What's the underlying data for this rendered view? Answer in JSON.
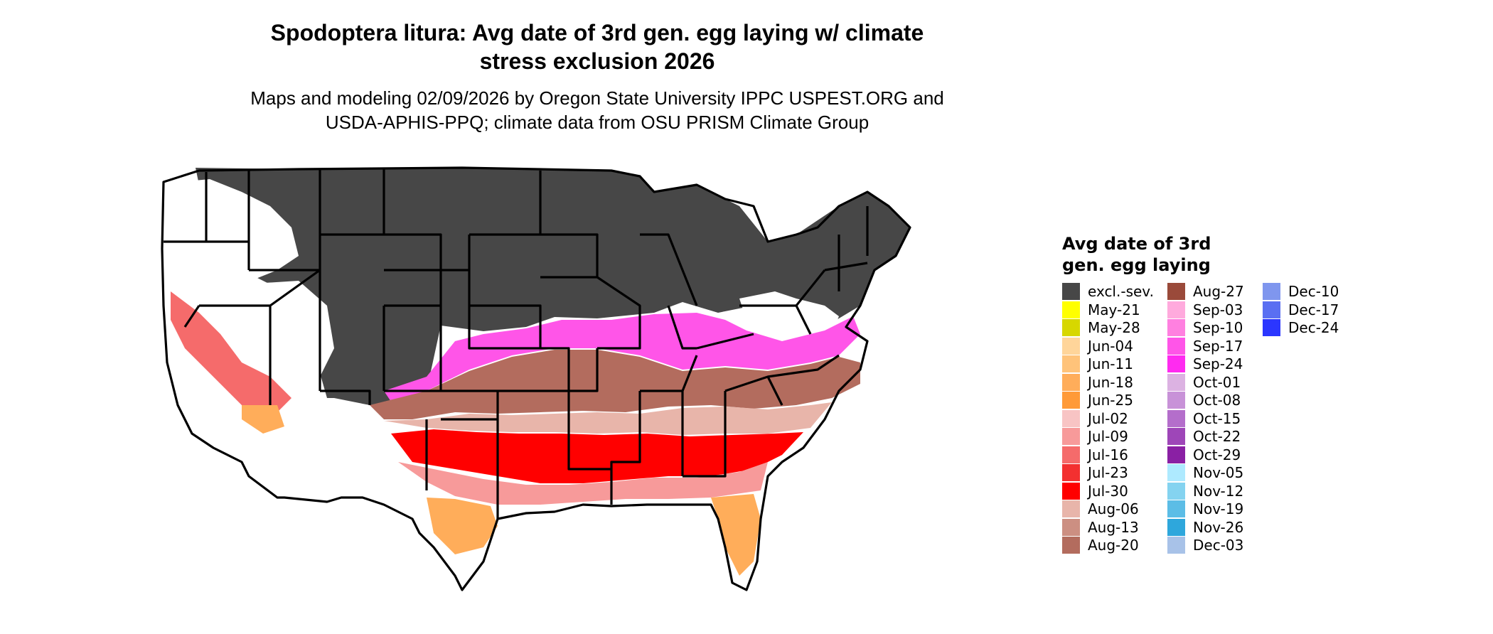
{
  "title_line1": "Spodoptera litura: Avg date of 3rd gen. egg laying w/ climate",
  "title_line2": "stress exclusion 2026",
  "subtitle_line1": "Maps and modeling 02/09/2026 by Oregon State University IPPC USPEST.ORG and",
  "subtitle_line2": "USDA-APHIS-PPQ; climate data from OSU PRISM Climate Group",
  "legend": {
    "title_line1": "Avg date of 3rd",
    "title_line2": "gen. egg laying",
    "columns": [
      [
        {
          "label": "excl.-sev.",
          "color": "#474747"
        },
        {
          "label": "May-21",
          "color": "#ffff00"
        },
        {
          "label": "May-28",
          "color": "#d7d700"
        },
        {
          "label": "Jun-04",
          "color": "#ffd59a"
        },
        {
          "label": "Jun-11",
          "color": "#ffc37a"
        },
        {
          "label": "Jun-18",
          "color": "#ffad5a"
        },
        {
          "label": "Jun-25",
          "color": "#ff9a38"
        },
        {
          "label": "Jul-02",
          "color": "#f8c4c4"
        },
        {
          "label": "Jul-09",
          "color": "#f79a9a"
        },
        {
          "label": "Jul-16",
          "color": "#f56b6b"
        },
        {
          "label": "Jul-23",
          "color": "#f33030"
        },
        {
          "label": "Jul-30",
          "color": "#ff0000"
        },
        {
          "label": "Aug-06",
          "color": "#e8b5aa"
        },
        {
          "label": "Aug-13",
          "color": "#cc8f82"
        },
        {
          "label": "Aug-20",
          "color": "#b36c5e"
        }
      ],
      [
        {
          "label": "Aug-27",
          "color": "#9a4a3a"
        },
        {
          "label": "Sep-03",
          "color": "#ffaadd"
        },
        {
          "label": "Sep-10",
          "color": "#ff80e0"
        },
        {
          "label": "Sep-17",
          "color": "#ff55e8"
        },
        {
          "label": "Sep-24",
          "color": "#ff2bf0"
        },
        {
          "label": "Oct-01",
          "color": "#dcb2e2"
        },
        {
          "label": "Oct-08",
          "color": "#c892d8"
        },
        {
          "label": "Oct-15",
          "color": "#b46ecb"
        },
        {
          "label": "Oct-22",
          "color": "#9e46b8"
        },
        {
          "label": "Oct-29",
          "color": "#8a20a4"
        },
        {
          "label": "Nov-05",
          "color": "#aeeaff"
        },
        {
          "label": "Nov-12",
          "color": "#84d3f0"
        },
        {
          "label": "Nov-19",
          "color": "#5cbde6"
        },
        {
          "label": "Nov-26",
          "color": "#2ea7dc"
        },
        {
          "label": "Dec-03",
          "color": "#a8c2e8"
        }
      ],
      [
        {
          "label": "Dec-10",
          "color": "#7f96ee"
        },
        {
          "label": "Dec-17",
          "color": "#5a6ff2"
        },
        {
          "label": "Dec-24",
          "color": "#2b36ff"
        }
      ]
    ]
  }
}
